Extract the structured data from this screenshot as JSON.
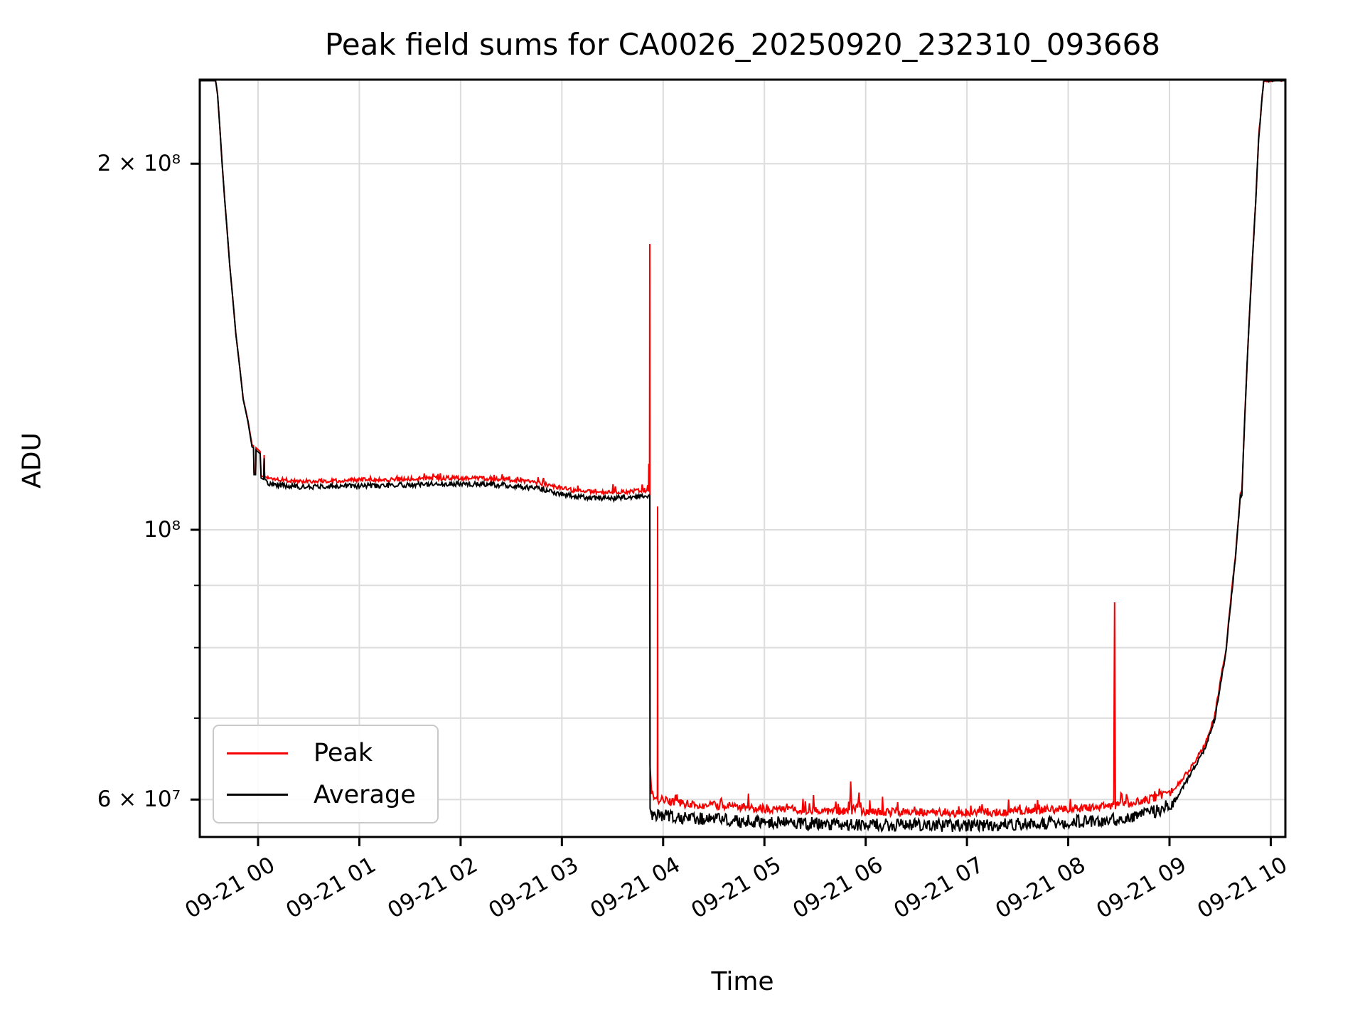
{
  "figure": {
    "background": "#ffffff",
    "title": "Peak field sums for CA0026_20250920_232310_093668"
  },
  "chart_data": {
    "type": "line",
    "title": "Peak field sums for CA0026_20250920_232310_093668",
    "xlabel": "Time",
    "ylabel": "ADU",
    "x_axis": {
      "unit": "hours after 2025-09-21 00:00",
      "xlim": [
        -0.575,
        10.145
      ],
      "ticks": [
        {
          "t": 0,
          "label": "09-21 00"
        },
        {
          "t": 1,
          "label": "09-21 01"
        },
        {
          "t": 2,
          "label": "09-21 02"
        },
        {
          "t": 3,
          "label": "09-21 03"
        },
        {
          "t": 4,
          "label": "09-21 04"
        },
        {
          "t": 5,
          "label": "09-21 05"
        },
        {
          "t": 6,
          "label": "09-21 06"
        },
        {
          "t": 7,
          "label": "09-21 07"
        },
        {
          "t": 8,
          "label": "09-21 08"
        },
        {
          "t": 9,
          "label": "09-21 09"
        },
        {
          "t": 10,
          "label": "09-21 10"
        }
      ]
    },
    "y_axis": {
      "scale": "log",
      "unit": "ADU",
      "ylim": [
        56000000,
        234500000
      ],
      "ticks": [
        {
          "value_millions": 200,
          "label": "2 × 10⁸",
          "major": true
        },
        {
          "value_millions": 100,
          "label": "10⁸",
          "major": true
        },
        {
          "value_millions": 90,
          "label": "",
          "major": false
        },
        {
          "value_millions": 80,
          "label": "",
          "major": false
        },
        {
          "value_millions": 70,
          "label": "",
          "major": false
        },
        {
          "value_millions": 60,
          "label": "6 × 10⁷",
          "major": true
        }
      ]
    },
    "grid": {
      "shown": true,
      "color": "#dcdcdc"
    },
    "legend": {
      "position": "lower left",
      "entries": [
        {
          "label": "Peak",
          "color": "#f80000"
        },
        {
          "label": "Average",
          "color": "#000000"
        }
      ]
    },
    "values_unit": "millions of ADU",
    "series": [
      {
        "name": "Peak",
        "color": "#f80000",
        "segments": [
          {
            "noise": 0,
            "points": [
              [
                -0.575,
                234.5
              ],
              [
                -0.42,
                234.5
              ],
              [
                -0.4,
                228
              ],
              [
                -0.355,
                200
              ],
              [
                -0.33,
                187
              ],
              [
                -0.28,
                165
              ],
              [
                -0.22,
                145
              ],
              [
                -0.147,
                128.2
              ],
              [
                -0.1,
                123
              ],
              [
                -0.06,
                117.5
              ],
              [
                -0.045,
                117.2
              ],
              [
                -0.04,
                111.5
              ],
              [
                -0.025,
                111.3
              ],
              [
                -0.02,
                116.8
              ],
              [
                0.02,
                116
              ],
              [
                0.03,
                110.8
              ],
              [
                0.055,
                110.5
              ],
              [
                0.06,
                115.2
              ],
              [
                0.065,
                110.6
              ],
              [
                0.09,
                110.4
              ]
            ]
          },
          {
            "noise": 0.004,
            "fringe": 0.05,
            "points": [
              [
                0.09,
                110.3
              ],
              [
                0.4,
                109.6
              ],
              [
                0.8,
                109.8
              ],
              [
                1.3,
                110
              ],
              [
                1.8,
                110.3
              ],
              [
                2.3,
                110.2
              ],
              [
                2.75,
                109.4
              ],
              [
                2.95,
                108.4
              ],
              [
                3.15,
                107.6
              ],
              [
                3.45,
                107.3
              ],
              [
                3.7,
                107.6
              ],
              [
                3.855,
                107.8
              ]
            ]
          },
          {
            "noise": 0,
            "points": [
              [
                3.855,
                107.8
              ],
              [
                3.858,
                113.3
              ],
              [
                3.862,
                107.8
              ],
              [
                3.8655,
                107.8
              ],
              [
                3.868,
                171.8
              ],
              [
                3.8705,
                64
              ],
              [
                3.885,
                61
              ]
            ]
          },
          {
            "noise": 0.008,
            "fringe": 0.07,
            "points": [
              [
                3.885,
                60.6
              ],
              [
                3.94,
                60.2
              ]
            ]
          },
          {
            "noise": 0,
            "points": [
              [
                3.943,
                60
              ],
              [
                3.9455,
                104.5
              ],
              [
                3.948,
                60
              ]
            ]
          },
          {
            "noise": 0.008,
            "fringe": 0.07,
            "points": [
              [
                3.948,
                60
              ],
              [
                4.2,
                59.5
              ],
              [
                4.56,
                59.3
              ],
              [
                4.575,
                60.6
              ],
              [
                4.59,
                59.3
              ],
              [
                5,
                59
              ],
              [
                5.5,
                58.8
              ],
              [
                5.84,
                58.7
              ],
              [
                5.852,
                61.2
              ],
              [
                5.864,
                58.7
              ],
              [
                5.95,
                59.6
              ],
              [
                5.962,
                58.7
              ],
              [
                6.3,
                58.6
              ],
              [
                6.8,
                58.5
              ],
              [
                7.3,
                58.6
              ],
              [
                7.8,
                58.9
              ],
              [
                8.1,
                59
              ],
              [
                8.45,
                59.3
              ],
              [
                8.458,
                87.1
              ],
              [
                8.466,
                59.3
              ],
              [
                8.7,
                59.8
              ],
              [
                8.9,
                60.3
              ],
              [
                9.03,
                61
              ]
            ]
          },
          {
            "noise": 0.004,
            "points": [
              [
                9.03,
                61
              ],
              [
                9.2,
                63.5
              ],
              [
                9.35,
                66.5
              ],
              [
                9.45,
                70.5
              ],
              [
                9.56,
                80
              ],
              [
                9.65,
                95
              ],
              [
                9.7,
                107
              ],
              [
                9.715,
                107.5
              ],
              [
                9.78,
                145
              ],
              [
                9.85,
                185
              ],
              [
                9.88,
                210
              ],
              [
                9.93,
                234.5
              ],
              [
                10.145,
                234.5
              ]
            ]
          }
        ]
      },
      {
        "name": "Average",
        "color": "#000000",
        "segments": [
          {
            "noise": 0,
            "points": [
              [
                -0.575,
                234.5
              ],
              [
                -0.42,
                234.5
              ],
              [
                -0.4,
                228
              ],
              [
                -0.355,
                200
              ],
              [
                -0.33,
                187
              ],
              [
                -0.28,
                165
              ],
              [
                -0.22,
                145
              ],
              [
                -0.147,
                128
              ],
              [
                -0.1,
                122.7
              ],
              [
                -0.06,
                117
              ],
              [
                -0.045,
                116.8
              ],
              [
                -0.04,
                111
              ],
              [
                -0.025,
                111
              ],
              [
                -0.02,
                116.3
              ],
              [
                0.02,
                115.5
              ],
              [
                0.03,
                110.3
              ],
              [
                0.055,
                110
              ],
              [
                0.06,
                114.5
              ],
              [
                0.065,
                110.2
              ],
              [
                0.09,
                109.6
              ]
            ]
          },
          {
            "noise": 0.005,
            "points": [
              [
                0.09,
                109.2
              ],
              [
                0.4,
                108.4
              ],
              [
                0.8,
                108.6
              ],
              [
                1.3,
                108.8
              ],
              [
                1.8,
                109.1
              ],
              [
                2.3,
                109
              ],
              [
                2.75,
                108.2
              ],
              [
                2.95,
                107.2
              ],
              [
                3.15,
                106.4
              ],
              [
                3.45,
                106.1
              ],
              [
                3.7,
                106.4
              ],
              [
                3.862,
                106.6
              ]
            ]
          },
          {
            "noise": 0,
            "points": [
              [
                3.862,
                106.6
              ],
              [
                3.868,
                106.6
              ],
              [
                3.871,
                59
              ],
              [
                3.885,
                58.3
              ]
            ]
          },
          {
            "noise": 0.012,
            "points": [
              [
                3.885,
                58.3
              ],
              [
                4.2,
                58
              ],
              [
                5,
                57.5
              ],
              [
                6,
                57.2
              ],
              [
                7,
                57.1
              ],
              [
                7.8,
                57.4
              ],
              [
                8.5,
                57.8
              ],
              [
                8.9,
                58.8
              ],
              [
                9.05,
                59.8
              ]
            ]
          },
          {
            "noise": 0.004,
            "points": [
              [
                9.05,
                59.8
              ],
              [
                9.2,
                62.8
              ],
              [
                9.35,
                66
              ],
              [
                9.45,
                70
              ],
              [
                9.56,
                79.5
              ],
              [
                9.65,
                94.5
              ],
              [
                9.7,
                106.5
              ],
              [
                9.715,
                107
              ],
              [
                9.78,
                144.5
              ],
              [
                9.85,
                184.5
              ],
              [
                9.88,
                209.5
              ],
              [
                9.93,
                234.5
              ],
              [
                10.145,
                234.5
              ]
            ]
          }
        ]
      }
    ]
  }
}
